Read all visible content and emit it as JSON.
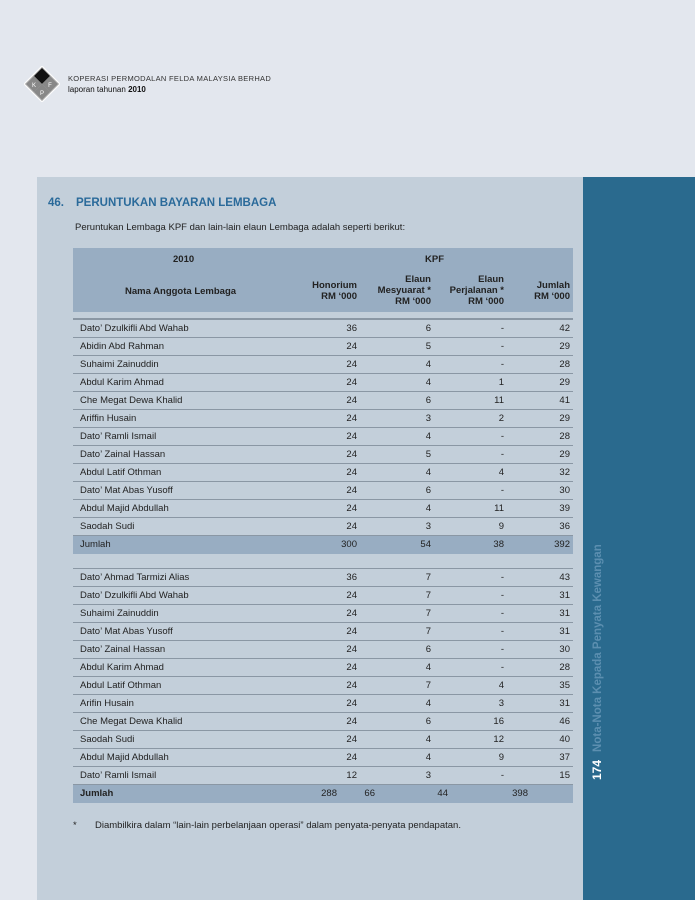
{
  "header": {
    "org": "KOPERASI PERMODALAN FELDA MALAYSIA BERHAD",
    "report_prefix": "laporan tahunan",
    "report_year": "2010",
    "logo_letters": "KPF"
  },
  "sidebar": {
    "page": "174",
    "section": "Nota-Nota Kepada Penyata Kewangan"
  },
  "section": {
    "number": "46.",
    "title": "PERUNTUKAN BAYARAN LEMBAGA",
    "intro": "Peruntukan Lembaga KPF dan lain-lain elaun Lembaga adalah seperti berikut:"
  },
  "table_head": {
    "year": "2010",
    "group": "KPF",
    "col_name": "Nama Anggota Lembaga",
    "col1": [
      "Honorium",
      "RM ‘000"
    ],
    "col2": [
      "Elaun",
      "Mesyuarat *",
      "RM ‘000"
    ],
    "col3": [
      "Elaun",
      "Perjalanan *",
      "RM ‘000"
    ],
    "col4": [
      "Jumlah",
      "RM ‘000"
    ]
  },
  "table1": [
    [
      "Dato’ Dzulkifli Abd Wahab",
      "36",
      "6",
      "-",
      "42"
    ],
    [
      "Abidin Abd Rahman",
      "24",
      "5",
      "-",
      "29"
    ],
    [
      "Suhaimi Zainuddin",
      "24",
      "4",
      "-",
      "28"
    ],
    [
      "Abdul Karim Ahmad",
      "24",
      "4",
      "1",
      "29"
    ],
    [
      "Che Megat Dewa Khalid",
      "24",
      "6",
      "11",
      "41"
    ],
    [
      "Ariffin Husain",
      "24",
      "3",
      "2",
      "29"
    ],
    [
      "Dato’ Ramli Ismail",
      "24",
      "4",
      "-",
      "28"
    ],
    [
      "Dato’ Zainal Hassan",
      "24",
      "5",
      "-",
      "29"
    ],
    [
      "Abdul Latif Othman",
      "24",
      "4",
      "4",
      "32"
    ],
    [
      "Dato’ Mat Abas Yusoff",
      "24",
      "6",
      "-",
      "30"
    ],
    [
      "Abdul Majid Abdullah",
      "24",
      "4",
      "11",
      "39"
    ],
    [
      "Saodah Sudi",
      "24",
      "3",
      "9",
      "36"
    ]
  ],
  "table1_total": [
    "Jumlah",
    "300",
    "54",
    "38",
    "392"
  ],
  "table2": [
    [
      "Dato’ Ahmad Tarmizi Alias",
      "36",
      "7",
      "-",
      "43"
    ],
    [
      "Dato’ Dzulkifli Abd Wahab",
      "24",
      "7",
      "-",
      "31"
    ],
    [
      "Suhaimi Zainuddin",
      "24",
      "7",
      "-",
      "31"
    ],
    [
      "Dato’ Mat Abas Yusoff",
      "24",
      "7",
      "-",
      "31"
    ],
    [
      "Dato’ Zainal Hassan",
      "24",
      "6",
      "-",
      "30"
    ],
    [
      "Abdul Karim Ahmad",
      "24",
      "4",
      "-",
      "28"
    ],
    [
      "Abdul Latif Othman",
      "24",
      "7",
      "4",
      "35"
    ],
    [
      "Arifin Husain",
      "24",
      "4",
      "3",
      "31"
    ],
    [
      "Che Megat Dewa Khalid",
      "24",
      "6",
      "16",
      "46"
    ],
    [
      "Saodah Sudi",
      "24",
      "4",
      "12",
      "40"
    ],
    [
      "Abdul Majid Abdullah",
      "24",
      "4",
      "9",
      "37"
    ],
    [
      "Dato’ Ramli Ismail",
      "12",
      "3",
      "-",
      "15"
    ]
  ],
  "table2_total": [
    "Jumlah",
    "288",
    "66",
    "44",
    "398"
  ],
  "footnote": {
    "mark": "*",
    "text": "Diambilkira dalam “lain-lain perbelanjaan operasi” dalam penyata-penyata pendapatan."
  },
  "colors": {
    "accent": "#2a6a9a",
    "sidebar": "#2a6a8e",
    "panel": "#c3cfda",
    "header_band": "#98adc2"
  }
}
